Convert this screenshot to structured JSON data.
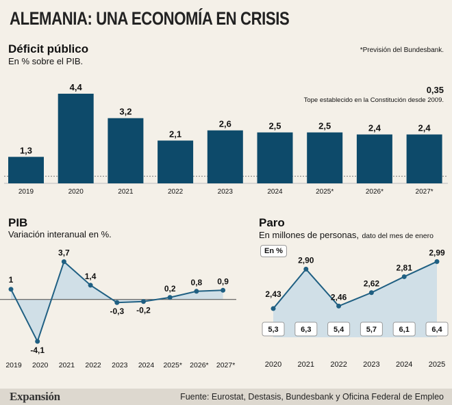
{
  "header": {
    "title": "ALEMANIA: UNA ECONOMÍA EN CRISIS"
  },
  "chart_data": [
    {
      "type": "bar",
      "title": "Déficit público",
      "subtitle": "En % sobre el PIB.",
      "note": "*Previsión del Bundesbank.",
      "categories": [
        "2019",
        "2020",
        "2021",
        "2022",
        "2023",
        "2024",
        "2025*",
        "2026*",
        "2027*"
      ],
      "values": [
        1.3,
        4.4,
        3.2,
        2.1,
        2.6,
        2.5,
        2.5,
        2.4,
        2.4
      ],
      "value_labels": [
        "1,3",
        "4,4",
        "3,2",
        "2,1",
        "2,6",
        "2,5",
        "2,5",
        "2,4",
        "2,4"
      ],
      "reference_line": {
        "value": 0.35,
        "label_value": "0,35",
        "label": "Tope establecido en la Constitución desde 2009."
      },
      "ylim": [
        0,
        4.5
      ],
      "color": "#0d4a6a"
    },
    {
      "type": "area",
      "title": "PIB",
      "subtitle": "Variación interanual en %.",
      "categories": [
        "2019",
        "2020",
        "2021",
        "2022",
        "2023",
        "2024",
        "2025*",
        "2026*",
        "2027*"
      ],
      "values": [
        1,
        -4.1,
        3.7,
        1.4,
        -0.3,
        -0.2,
        0.2,
        0.8,
        0.9
      ],
      "value_labels": [
        "1",
        "-4,1",
        "3,7",
        "1,4",
        "-0,3",
        "-0,2",
        "0,2",
        "0,8",
        "0,9"
      ],
      "ylim": [
        -4.5,
        4.2
      ],
      "color": "#1f5f82",
      "fill": "#c9dce6"
    },
    {
      "type": "area",
      "title": "Paro",
      "subtitle": "En millones de personas,",
      "subtitle_small": "dato del mes de enero",
      "badge": "En %",
      "categories": [
        "2020",
        "2021",
        "2022",
        "2023",
        "2024",
        "2025"
      ],
      "values": [
        2.43,
        2.9,
        2.46,
        2.62,
        2.81,
        2.99
      ],
      "value_labels": [
        "2,43",
        "2,90",
        "2,46",
        "2,62",
        "2,81",
        "2,99"
      ],
      "rate_labels": [
        "5,3",
        "6,3",
        "5,4",
        "5,7",
        "6,1",
        "6,4"
      ],
      "ylim": [
        2.3,
        3.05
      ],
      "color": "#1f5f82",
      "fill": "#c9dce6"
    }
  ],
  "footer": {
    "brand": "Expansión",
    "source": "Fuente: Eurostat, Destasis, Bundesbank y Oficina Federal de Empleo"
  }
}
